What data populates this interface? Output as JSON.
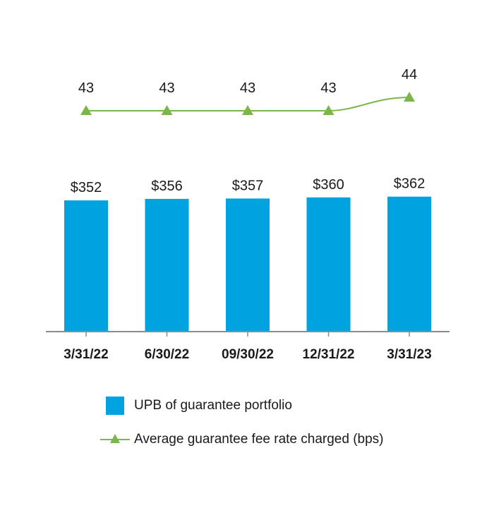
{
  "chart_data": {
    "type": "bar",
    "categories": [
      "3/31/22",
      "6/30/22",
      "09/30/22",
      "12/31/22",
      "3/31/23"
    ],
    "series": [
      {
        "name": "UPB of guarantee portfolio",
        "type": "bar",
        "values": [
          352,
          356,
          357,
          360,
          362
        ],
        "labels": [
          "$352",
          "$356",
          "$357",
          "$360",
          "$362"
        ],
        "color": "#00a3e0"
      },
      {
        "name": "Average guarantee fee rate charged (bps)",
        "type": "line",
        "marker": "triangle",
        "values": [
          43,
          43,
          43,
          43,
          44
        ],
        "labels": [
          "43",
          "43",
          "43",
          "43",
          "44"
        ],
        "color": "#7ab648"
      }
    ],
    "title": "",
    "xlabel": "",
    "ylabel": "",
    "grid": false,
    "legend": "bottom"
  },
  "colors": {
    "bar": "#00a3e0",
    "line": "#7ab648",
    "axis": "#8c8c8c"
  }
}
